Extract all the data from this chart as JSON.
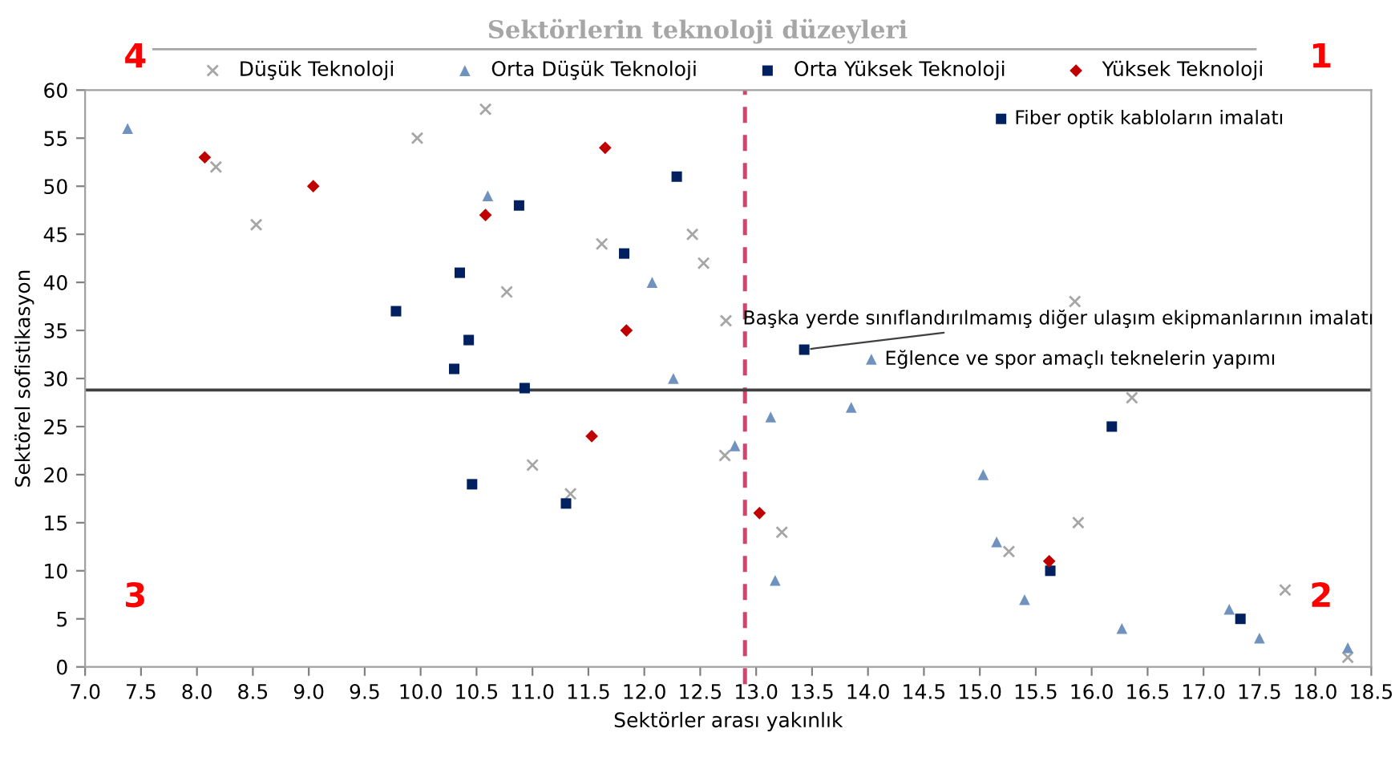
{
  "chart_data": {
    "type": "scatter",
    "title": "Sektörlerin teknoloji düzeyleri",
    "xlabel": "Sektörler arası yakınlık",
    "ylabel": "Sektörel sofistikasyon",
    "xlim": [
      7.0,
      18.5
    ],
    "xticks": [
      {
        "value": 7.0,
        "label": "7.0"
      },
      {
        "value": 7.5,
        "label": "7.5"
      },
      {
        "value": 8.0,
        "label": "8.0"
      },
      {
        "value": 8.5,
        "label": "8.5"
      },
      {
        "value": 9.0,
        "label": "9.0"
      },
      {
        "value": 9.5,
        "label": "9.5"
      },
      {
        "value": 10.0,
        "label": "10.0"
      },
      {
        "value": 10.5,
        "label": "10.5"
      },
      {
        "value": 11.0,
        "label": "11.0"
      },
      {
        "value": 11.5,
        "label": "11.5"
      },
      {
        "value": 12.0,
        "label": "12.0"
      },
      {
        "value": 12.5,
        "label": "12.5"
      },
      {
        "value": 13.0,
        "label": "13.0"
      },
      {
        "value": 13.5,
        "label": "13.5"
      },
      {
        "value": 14.0,
        "label": "14.0"
      },
      {
        "value": 14.5,
        "label": "14.5"
      },
      {
        "value": 15.0,
        "label": "15.0"
      },
      {
        "value": 15.5,
        "label": "15.5"
      },
      {
        "value": 16.0,
        "label": "16.0"
      },
      {
        "value": 16.5,
        "label": "16.5"
      },
      {
        "value": 17.0,
        "label": "17.0"
      },
      {
        "value": 17.5,
        "label": "17.5"
      },
      {
        "value": 18.0,
        "label": "18.0"
      },
      {
        "value": 18.5,
        "label": "18.5"
      }
    ],
    "ylim": [
      0,
      60
    ],
    "yticks": [
      0,
      5,
      10,
      15,
      20,
      25,
      30,
      35,
      40,
      45,
      50,
      55,
      60
    ],
    "grid": false,
    "legend": "top",
    "series": [
      {
        "name": "Düşük Teknoloji",
        "color": "#a6a6a6",
        "marker": "cross",
        "x": [
          8.17,
          8.53,
          9.97,
          10.58,
          10.77,
          11.62,
          12.43,
          12.53,
          12.73,
          15.85,
          11.0,
          11.34,
          12.72,
          13.23,
          15.88,
          15.26,
          16.36,
          17.73,
          18.29
        ],
        "values": [
          52,
          46,
          55,
          58,
          39,
          44,
          45,
          42,
          36,
          38,
          21,
          18,
          22,
          14,
          15,
          12,
          28,
          8,
          1
        ]
      },
      {
        "name": "Orta Düşük Teknoloji",
        "color": "#7092be",
        "marker": "triangle",
        "x": [
          7.38,
          10.6,
          12.07,
          12.26,
          14.03,
          12.81,
          13.13,
          13.85,
          13.17,
          15.03,
          15.15,
          15.4,
          16.27,
          17.23,
          17.5,
          18.29
        ],
        "values": [
          56,
          49,
          40,
          30,
          32,
          23,
          26,
          27,
          9,
          20,
          13,
          7,
          4,
          6,
          3,
          2
        ]
      },
      {
        "name": "Orta Yüksek Teknoloji",
        "color": "#002060",
        "marker": "square",
        "x": [
          9.78,
          10.35,
          10.43,
          10.3,
          10.88,
          12.29,
          11.82,
          10.93,
          13.43,
          15.19,
          10.46,
          11.3,
          16.18,
          15.63,
          17.33
        ],
        "values": [
          37,
          41,
          34,
          31,
          48,
          51,
          43,
          29,
          33,
          57,
          19,
          17,
          25,
          10,
          5
        ]
      },
      {
        "name": "Yüksek Teknoloji",
        "color": "#c00000",
        "marker": "diamond",
        "x": [
          8.07,
          9.04,
          10.58,
          11.65,
          11.84,
          11.53,
          13.03,
          15.62
        ],
        "values": [
          53,
          50,
          47,
          54,
          35,
          24,
          16,
          11
        ]
      }
    ],
    "ref_lines": [
      {
        "axis": "x",
        "value": 12.9,
        "color": "#d6426e",
        "line_style": "dashed"
      },
      {
        "axis": "y",
        "value": 28.8,
        "color": "#404040",
        "line_style": "solid"
      }
    ],
    "annotations": [
      {
        "text": "Fiber optik kabloların imalatı",
        "x": 15.19,
        "y": 57
      },
      {
        "text": "Başka yerde sınıflandırılmamış diğer ulaşım ekipmanlarının imalatı",
        "x": 13.43,
        "y": 33
      },
      {
        "text": "Eğlence ve spor amaçlı teknelerin yapımı",
        "x": 14.03,
        "y": 32
      },
      "1",
      "2",
      "3",
      "4"
    ]
  }
}
